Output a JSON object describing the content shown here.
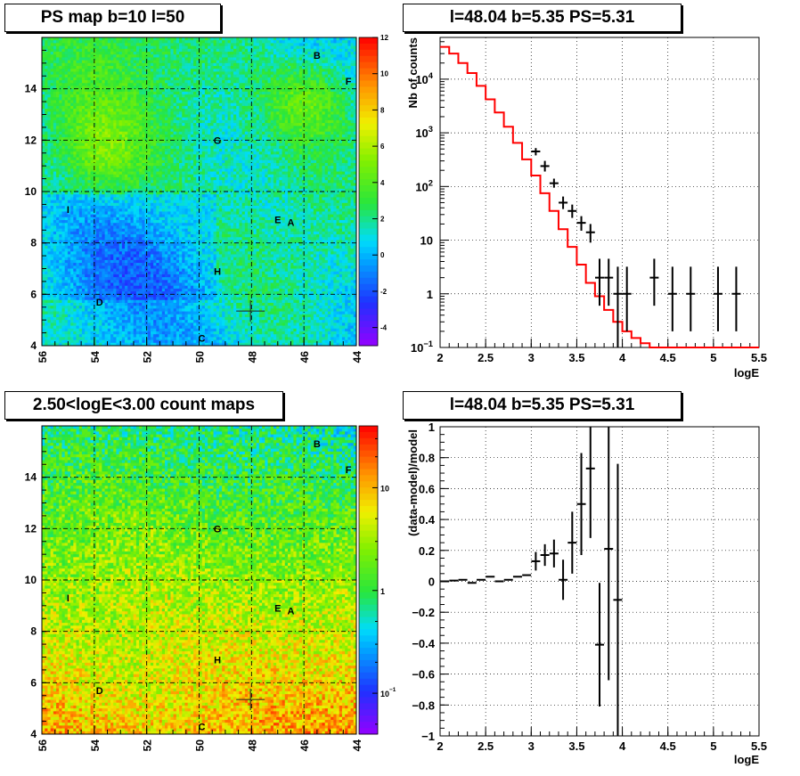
{
  "chart_data": [
    {
      "type": "heatmap",
      "title": "PS map b=10 l=50",
      "x_ticks": [
        "56",
        "54",
        "52",
        "50",
        "48",
        "46",
        "44"
      ],
      "y_ticks": [
        "4",
        "6",
        "8",
        "10",
        "12",
        "14"
      ],
      "colorbar_ticks": [
        "12",
        "10",
        "8",
        "6",
        "4",
        "2",
        "0",
        "-2",
        "-4"
      ],
      "xlim": [
        56,
        44
      ],
      "ylim": [
        4,
        16
      ],
      "zlim": [
        -5,
        12
      ],
      "source_labels": [
        {
          "label": "B",
          "l": 45.5,
          "b": 15.3
        },
        {
          "label": "F",
          "l": 44.3,
          "b": 14.3
        },
        {
          "label": "G",
          "l": 49.3,
          "b": 12.0
        },
        {
          "label": "I",
          "l": 55.0,
          "b": 9.3
        },
        {
          "label": "E",
          "l": 47.0,
          "b": 8.9
        },
        {
          "label": "A",
          "l": 46.5,
          "b": 8.8
        },
        {
          "label": "H",
          "l": 49.3,
          "b": 6.9
        },
        {
          "label": "D",
          "l": 53.8,
          "b": 5.7
        },
        {
          "label": "C",
          "l": 49.9,
          "b": 4.3
        }
      ],
      "marker": {
        "l": 48.04,
        "b": 5.35
      }
    },
    {
      "type": "line",
      "title": "l=48.04 b=5.35 PS=5.31",
      "xlabel": "logE",
      "ylabel": "Nb of counts",
      "xlim": [
        2,
        5.5
      ],
      "ylim": [
        0.1,
        60000
      ],
      "yscale": "log",
      "x_ticks": [
        "2",
        "2.5",
        "3",
        "3.5",
        "4",
        "4.5",
        "5",
        "5.5"
      ],
      "y_ticks": [
        {
          "v": 0.1,
          "m": "10",
          "e": "−1"
        },
        {
          "v": 1,
          "m": "1",
          "e": ""
        },
        {
          "v": 10,
          "m": "10",
          "e": ""
        },
        {
          "v": 100,
          "m": "10",
          "e": "2"
        },
        {
          "v": 1000,
          "m": "10",
          "e": "3"
        },
        {
          "v": 10000,
          "m": "10",
          "e": "4"
        }
      ],
      "series": [
        {
          "kind": "step",
          "color": "#ff0000",
          "x_edges": [
            2.0,
            2.1,
            2.2,
            2.3,
            2.4,
            2.5,
            2.6,
            2.7,
            2.8,
            2.9,
            3.0,
            3.1,
            3.2,
            3.3,
            3.4,
            3.5,
            3.6,
            3.7,
            3.8,
            3.9,
            4.0,
            4.1,
            4.2,
            4.3,
            4.4,
            4.5,
            5.5
          ],
          "values": [
            40000,
            30000,
            20000,
            13000,
            7500,
            4200,
            2400,
            1300,
            650,
            320,
            160,
            75,
            35,
            16,
            7.5,
            3.5,
            1.6,
            0.9,
            0.5,
            0.3,
            0.2,
            0.15,
            0.12,
            0.1,
            0.1,
            0.1
          ]
        },
        {
          "kind": "points",
          "color": "#000000",
          "points": [
            {
              "x": 3.05,
              "y": 450,
              "lo": 380,
              "hi": 520
            },
            {
              "x": 3.15,
              "y": 240,
              "lo": 190,
              "hi": 300
            },
            {
              "x": 3.25,
              "y": 115,
              "lo": 95,
              "hi": 140
            },
            {
              "x": 3.35,
              "y": 50,
              "lo": 38,
              "hi": 65
            },
            {
              "x": 3.45,
              "y": 35,
              "lo": 26,
              "hi": 46
            },
            {
              "x": 3.55,
              "y": 21,
              "lo": 15,
              "hi": 28
            },
            {
              "x": 3.65,
              "y": 14,
              "lo": 9,
              "hi": 20
            },
            {
              "x": 3.75,
              "y": 2,
              "lo": 0.6,
              "hi": 4.5
            },
            {
              "x": 3.85,
              "y": 2,
              "lo": 0.6,
              "hi": 4.5
            },
            {
              "x": 3.95,
              "y": 1,
              "lo": 0.1,
              "hi": 3.2
            },
            {
              "x": 4.05,
              "y": 1,
              "lo": 0.2,
              "hi": 3.2
            },
            {
              "x": 4.35,
              "y": 2,
              "lo": 0.6,
              "hi": 4.5
            },
            {
              "x": 4.55,
              "y": 1,
              "lo": 0.2,
              "hi": 3.2
            },
            {
              "x": 4.75,
              "y": 1,
              "lo": 0.2,
              "hi": 3.2
            },
            {
              "x": 5.05,
              "y": 1,
              "lo": 0.2,
              "hi": 3.2
            },
            {
              "x": 5.25,
              "y": 1,
              "lo": 0.2,
              "hi": 3.2
            }
          ]
        }
      ]
    },
    {
      "type": "heatmap",
      "title": "2.50<logE<3.00 count maps",
      "x_ticks": [
        "56",
        "54",
        "52",
        "50",
        "48",
        "46",
        "44"
      ],
      "y_ticks": [
        "4",
        "6",
        "8",
        "10",
        "12",
        "14"
      ],
      "colorbar_ticks": [
        {
          "v": 10,
          "m": "10",
          "e": ""
        },
        {
          "v": 1,
          "m": "1",
          "e": ""
        },
        {
          "v": 0.1,
          "m": "10",
          "e": "−1"
        }
      ],
      "zscale": "log",
      "zlim": [
        0.04,
        40
      ],
      "xlim": [
        56,
        44
      ],
      "ylim": [
        4,
        16
      ],
      "source_labels": [
        {
          "label": "B",
          "l": 45.5,
          "b": 15.3
        },
        {
          "label": "F",
          "l": 44.3,
          "b": 14.3
        },
        {
          "label": "G",
          "l": 49.3,
          "b": 12.0
        },
        {
          "label": "I",
          "l": 55.0,
          "b": 9.3
        },
        {
          "label": "E",
          "l": 47.0,
          "b": 8.9
        },
        {
          "label": "A",
          "l": 46.5,
          "b": 8.8
        },
        {
          "label": "H",
          "l": 49.3,
          "b": 6.9
        },
        {
          "label": "D",
          "l": 53.8,
          "b": 5.7
        },
        {
          "label": "C",
          "l": 49.9,
          "b": 4.3
        }
      ],
      "marker": {
        "l": 48.04,
        "b": 5.35
      }
    },
    {
      "type": "scatter",
      "title": "l=48.04 b=5.35 PS=5.31",
      "xlabel": "logE",
      "ylabel": "(data-model)/model",
      "xlim": [
        2,
        5.5
      ],
      "ylim": [
        -1,
        1
      ],
      "x_ticks": [
        "2",
        "2.5",
        "3",
        "3.5",
        "4",
        "4.5",
        "5",
        "5.5"
      ],
      "y_ticks": [
        "1",
        "0.8",
        "0.6",
        "0.4",
        "0.2",
        "0",
        "−0.2",
        "−0.4",
        "−0.6",
        "−0.8",
        "−1"
      ],
      "points": [
        {
          "x": 2.05,
          "y": 0.0,
          "err": 0.0
        },
        {
          "x": 2.15,
          "y": 0.005,
          "err": 0.0
        },
        {
          "x": 2.25,
          "y": 0.01,
          "err": 0.0
        },
        {
          "x": 2.35,
          "y": -0.01,
          "err": 0.0
        },
        {
          "x": 2.45,
          "y": 0.01,
          "err": 0.0
        },
        {
          "x": 2.55,
          "y": 0.03,
          "err": 0.0
        },
        {
          "x": 2.65,
          "y": 0.0,
          "err": 0.0
        },
        {
          "x": 2.75,
          "y": 0.01,
          "err": 0.0
        },
        {
          "x": 2.85,
          "y": 0.03,
          "err": 0.0
        },
        {
          "x": 2.95,
          "y": 0.04,
          "err": 0.0
        },
        {
          "x": 3.05,
          "y": 0.13,
          "err": 0.06
        },
        {
          "x": 3.15,
          "y": 0.17,
          "err": 0.07
        },
        {
          "x": 3.25,
          "y": 0.18,
          "err": 0.09
        },
        {
          "x": 3.35,
          "y": 0.01,
          "err": 0.13
        },
        {
          "x": 3.45,
          "y": 0.25,
          "err": 0.2
        },
        {
          "x": 3.55,
          "y": 0.5,
          "err": 0.33
        },
        {
          "x": 3.65,
          "y": 0.73,
          "err": 0.45
        },
        {
          "x": 3.75,
          "y": -0.41,
          "err": 0.4
        },
        {
          "x": 3.85,
          "y": 0.21,
          "err": 0.85
        },
        {
          "x": 3.95,
          "y": -0.12,
          "err": 0.88
        }
      ]
    }
  ]
}
